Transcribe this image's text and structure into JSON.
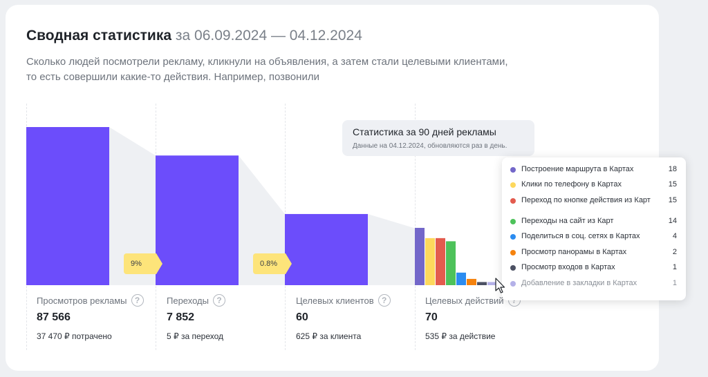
{
  "header": {
    "title": "Сводная статистика",
    "range": "за 06.09.2024 — 04.12.2024",
    "description_line1": "Сколько людей посмотрели рекламу, кликнули на объявления, а затем стали целевыми клиентами,",
    "description_line2": "то есть совершили какие-то действия. Например, позвонили"
  },
  "info": {
    "title": "Статистика за 90 дней рекламы",
    "subtitle": "Данные на 04.12.2024, обновляются раз в день."
  },
  "colors": {
    "bar": "#6c4dfb",
    "funnel": "#eef0f3",
    "badge": "#fde47a"
  },
  "chart_data": {
    "type": "bar",
    "categories": [
      "Просмотров рекламы",
      "Переходы",
      "Целевых клиентов",
      "Целевых действий"
    ],
    "values": [
      87566,
      7852,
      60,
      70
    ],
    "value_labels": [
      "87 566",
      "7 852",
      "60",
      "70"
    ],
    "sub_labels": [
      "37 470 ₽ потрачено",
      "5 ₽ за переход",
      "625 ₽ за клиента",
      "535 ₽ за действие"
    ],
    "conversions": [
      "9%",
      "0.8%"
    ],
    "bar_heights_relative": [
      1.0,
      0.82,
      0.45
    ],
    "breakdown": {
      "type": "bar",
      "max": 18,
      "items": [
        {
          "label": "Построение маршрута в Картах",
          "value": 18,
          "color": "#7367c9"
        },
        {
          "label": "Клики по телефону в Картах",
          "value": 15,
          "color": "#fdd85d"
        },
        {
          "label": "Переход по кнопке действия из Карт",
          "value": 15,
          "color": "#e35b4e"
        },
        {
          "label": "Переходы на сайт из Карт",
          "value": 14,
          "color": "#4dc25a"
        },
        {
          "label": "Поделиться в соц. сетях в Картах",
          "value": 4,
          "color": "#2b8cf0"
        },
        {
          "label": "Просмотр панорамы в Картах",
          "value": 2,
          "color": "#f5820d"
        },
        {
          "label": "Просмотр входов в Картах",
          "value": 1,
          "color": "#4c5163"
        },
        {
          "label": "Добавление в закладки в Картах",
          "value": 1,
          "color": "#b4b1e8",
          "muted": true
        }
      ]
    }
  }
}
